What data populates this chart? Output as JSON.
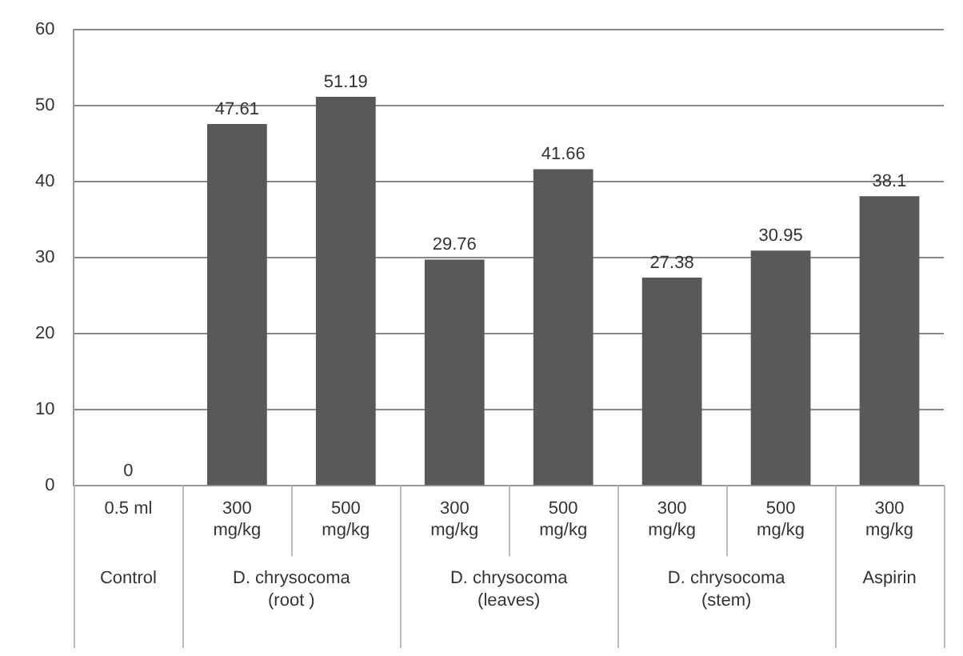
{
  "chart_data": {
    "type": "bar",
    "categories": [
      "0.5 ml",
      "300\nmg/kg",
      "500\nmg/kg",
      "300\nmg/kg",
      "500\nmg/kg",
      "300\nmg/kg",
      "500\nmg/kg",
      "300\nmg/kg"
    ],
    "values": [
      0,
      47.61,
      51.19,
      29.76,
      41.66,
      27.38,
      30.95,
      38.1
    ],
    "color": "#595959",
    "ylim": [
      0,
      60
    ],
    "yticks": [
      0,
      10,
      20,
      30,
      40,
      50,
      60
    ],
    "grid": "y",
    "data_labels": true,
    "legend": false,
    "annotations": [
      "Control",
      "D. chrysocoma\n(root )",
      "D. chrysocoma\n(leaves)",
      "D. chrysocoma\n(stem)",
      "Aspirin"
    ]
  }
}
